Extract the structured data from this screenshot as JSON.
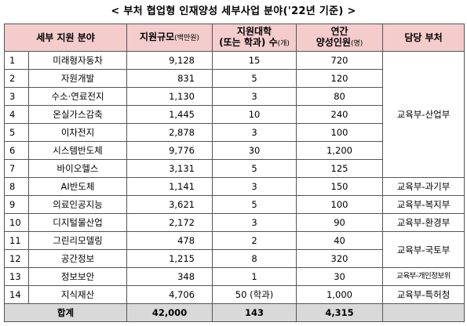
{
  "title": "< 부처 협업형 인재양성 세부사업 분야('22년 기준) >",
  "headers": {
    "field": "세부 지원 분야",
    "budget": "지원규모",
    "budget_unit": "(백만원)",
    "univ_line1": "지원대학",
    "univ_line2": "(또는 학과) 수",
    "univ_unit": "(개)",
    "annual_line1": "연간",
    "annual_line2": "양성인원",
    "annual_unit": "(명)",
    "dept": "담당 부처"
  },
  "rows": [
    {
      "no": "1",
      "field": "미래형자동차",
      "budget": "9,128",
      "univ": "15",
      "annual": "720"
    },
    {
      "no": "2",
      "field": "자원개발",
      "budget": "831",
      "univ": "5",
      "annual": "120"
    },
    {
      "no": "3",
      "field": "수소·연료전지",
      "budget": "1,130",
      "univ": "3",
      "annual": "80"
    },
    {
      "no": "4",
      "field": "온실가스감축",
      "budget": "1,445",
      "univ": "10",
      "annual": "240"
    },
    {
      "no": "5",
      "field": "이차전지",
      "budget": "2,878",
      "univ": "3",
      "annual": "100"
    },
    {
      "no": "6",
      "field": "시스템반도체",
      "budget": "9,776",
      "univ": "30",
      "annual": "1,200"
    },
    {
      "no": "7",
      "field": "바이오헬스",
      "budget": "3,131",
      "univ": "5",
      "annual": "125"
    },
    {
      "no": "8",
      "field": "AI반도체",
      "budget": "1,141",
      "univ": "3",
      "annual": "150"
    },
    {
      "no": "9",
      "field": "의료인공지능",
      "budget": "3,621",
      "univ": "5",
      "annual": "100"
    },
    {
      "no": "10",
      "field": "디지털물산업",
      "budget": "2,172",
      "univ": "3",
      "annual": "90"
    },
    {
      "no": "11",
      "field": "그린리모델링",
      "budget": "478",
      "univ": "2",
      "annual": "40"
    },
    {
      "no": "12",
      "field": "공간정보",
      "budget": "1,215",
      "univ": "8",
      "annual": "320"
    },
    {
      "no": "13",
      "field": "정보보안",
      "budget": "348",
      "univ": "1",
      "annual": "30"
    },
    {
      "no": "14",
      "field": "지식재산",
      "budget": "4,706",
      "univ": "50 (학과)",
      "annual": "1,000"
    }
  ],
  "depts": {
    "moe_motie": "교육부-산업부",
    "moe_msit": "교육부-과기부",
    "moe_mohw": "교육부-복지부",
    "moe_me": "교육부-환경부",
    "moe_molit": "교육부-국토부",
    "moe_pipc": "교육부-개인정보위",
    "moe_kipo": "교육부-특허청"
  },
  "total": {
    "label": "합계",
    "budget": "42,000",
    "univ": "143",
    "annual": "4,315"
  }
}
